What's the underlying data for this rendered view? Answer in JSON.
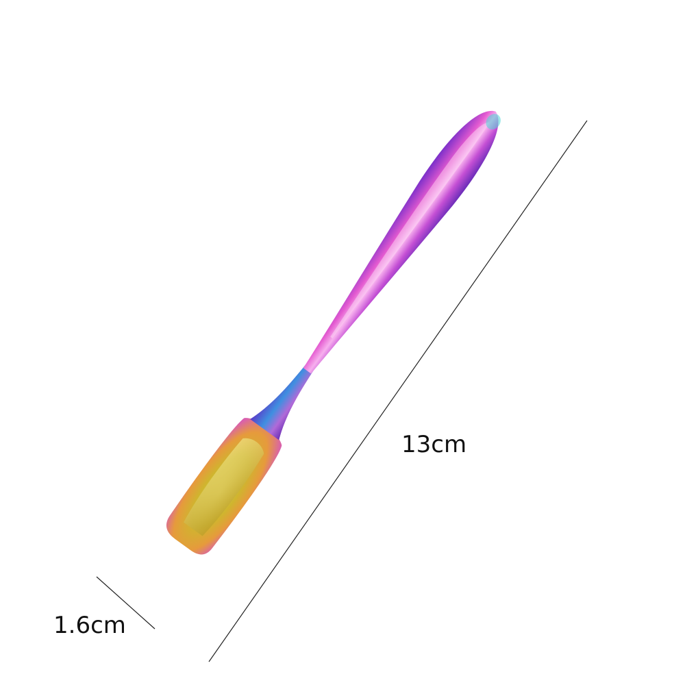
{
  "dimensions": {
    "length_label": "13cm",
    "width_label": "1.6cm"
  },
  "product": {
    "type": "iridescent stainless steel scoop spoon",
    "colors": {
      "handle_pink": "#d64fc8",
      "handle_purple": "#8a3fd1",
      "neck_blue": "#3b6fd8",
      "bowl_gold": "#d9c43a",
      "bowl_orange": "#e8a040",
      "bowl_rose": "#e070b0"
    }
  },
  "background_color": "#ffffff",
  "line_color": "#222222"
}
